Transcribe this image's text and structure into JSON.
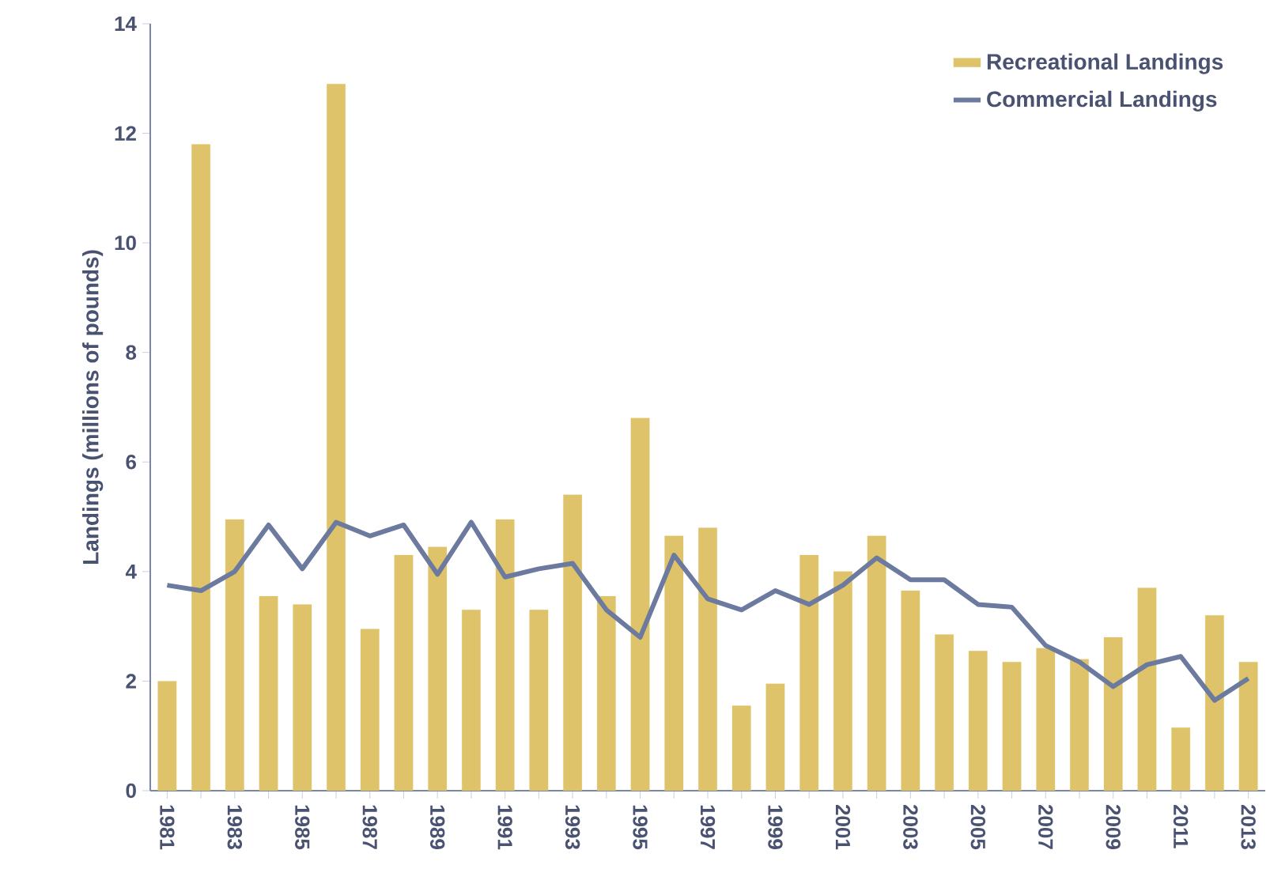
{
  "chart_data": {
    "type": "bar",
    "ylabel": "Landings (millions of pounds)",
    "categories": [
      "1981",
      null,
      "1983",
      null,
      "1985",
      null,
      "1987",
      null,
      "1989",
      null,
      "1991",
      null,
      "1993",
      null,
      "1995",
      null,
      "1997",
      null,
      "1999",
      null,
      "2001",
      null,
      "2003",
      null,
      "2005",
      null,
      "2007",
      null,
      "2009",
      null,
      "2011",
      null,
      "2013"
    ],
    "series": [
      {
        "name": "Recreational Landings",
        "color": "#dfc36a",
        "values": [
          2.0,
          11.8,
          4.95,
          3.55,
          3.4,
          12.9,
          2.95,
          4.3,
          4.45,
          3.3,
          4.95,
          3.3,
          5.4,
          3.55,
          6.8,
          4.65,
          4.8,
          1.55,
          1.95,
          4.3,
          4.0,
          4.65,
          3.65,
          2.85,
          2.55,
          2.35,
          2.6,
          2.4,
          2.8,
          3.7,
          1.15,
          3.2,
          2.35
        ]
      },
      {
        "name": "Commercial Landings",
        "type": "line",
        "color": "#6b7a9e",
        "values": [
          3.75,
          3.65,
          4.0,
          4.85,
          4.05,
          4.9,
          4.65,
          4.85,
          3.95,
          4.9,
          3.9,
          4.05,
          4.15,
          3.3,
          2.8,
          4.3,
          3.5,
          3.3,
          3.65,
          3.4,
          3.75,
          4.25,
          3.85,
          3.85,
          3.4,
          3.35,
          2.65,
          2.35,
          1.9,
          2.3,
          2.45,
          1.65,
          2.05
        ]
      }
    ],
    "ylim": [
      0,
      14
    ],
    "yticks": [
      0,
      2,
      4,
      6,
      8,
      10,
      12,
      14
    ],
    "legend": "top right",
    "grid": false
  }
}
